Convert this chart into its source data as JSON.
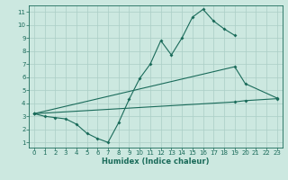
{
  "xlabel": "Humidex (Indice chaleur)",
  "bg_color": "#cce8e0",
  "grid_color": "#aacec6",
  "line_color": "#1a6b5a",
  "spine_color": "#1a6b5a",
  "xlim": [
    -0.5,
    23.5
  ],
  "ylim": [
    0.6,
    11.5
  ],
  "xticks": [
    0,
    1,
    2,
    3,
    4,
    5,
    6,
    7,
    8,
    9,
    10,
    11,
    12,
    13,
    14,
    15,
    16,
    17,
    18,
    19,
    20,
    21,
    22,
    23
  ],
  "yticks": [
    1,
    2,
    3,
    4,
    5,
    6,
    7,
    8,
    9,
    10,
    11
  ],
  "line1_x": [
    0,
    1,
    2,
    3,
    4,
    5,
    6,
    7,
    8,
    9,
    10,
    11,
    12,
    13,
    14,
    15,
    16,
    17,
    18,
    19
  ],
  "line1_y": [
    3.2,
    3.0,
    2.9,
    2.8,
    2.4,
    1.7,
    1.3,
    1.0,
    2.5,
    4.3,
    5.9,
    7.0,
    8.8,
    7.7,
    9.0,
    10.6,
    11.2,
    10.3,
    9.7,
    9.2
  ],
  "line2_x": [
    0,
    19,
    20,
    23
  ],
  "line2_y": [
    3.2,
    6.8,
    5.5,
    4.4
  ],
  "line3_x": [
    0,
    19,
    20,
    23
  ],
  "line3_y": [
    3.2,
    4.1,
    4.2,
    4.35
  ],
  "tick_fontsize": 5.0,
  "xlabel_fontsize": 6.0
}
